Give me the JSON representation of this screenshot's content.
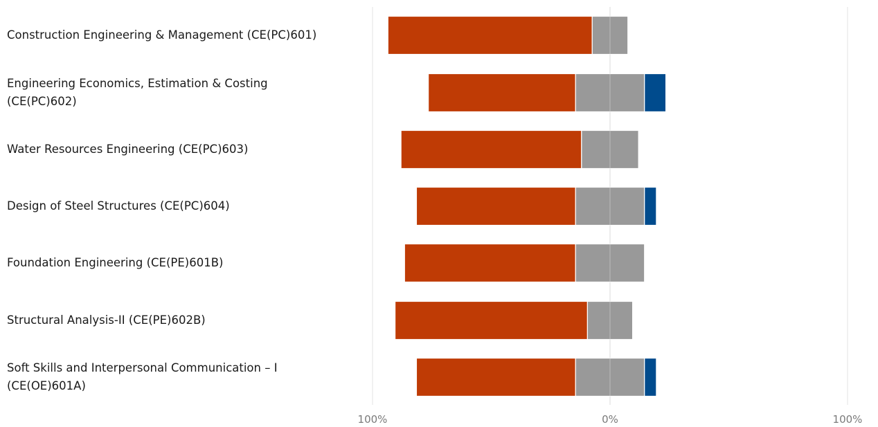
{
  "chart_data": {
    "type": "bar",
    "orientation": "horizontal",
    "stacking": "diverging",
    "categories": [
      "Construction Engineering & Management (CE(PC)601)",
      "Engineering Economics, Estimation & Costing (CE(PC)602)",
      "Water Resources Engineering (CE(PC)603)",
      "Design of Steel Structures (CE(PC)604)",
      "Foundation Engineering (CE(PE)601B)",
      "Structural Analysis-II (CE(PE)602B)",
      "Soft Skills and Interpersonal Communication – I (CE(OE)601A)"
    ],
    "series": [
      {
        "color": "#bf3b05",
        "values": [
          86,
          62,
          76,
          67,
          72,
          81,
          67
        ],
        "side": "negative"
      },
      {
        "color": "#999999",
        "values": [
          15,
          29,
          24,
          29,
          29,
          19,
          29
        ],
        "side": "neutral"
      },
      {
        "color": "#004b8d",
        "values": [
          0,
          9,
          0,
          5,
          0,
          0,
          5
        ],
        "side": "positive"
      }
    ],
    "x_ticks": [
      "100%",
      "0%",
      "100%"
    ],
    "xlim": [
      -100,
      100
    ],
    "xlabel": "",
    "ylabel": "",
    "title": "",
    "grid": "vertical",
    "legend": "none"
  }
}
